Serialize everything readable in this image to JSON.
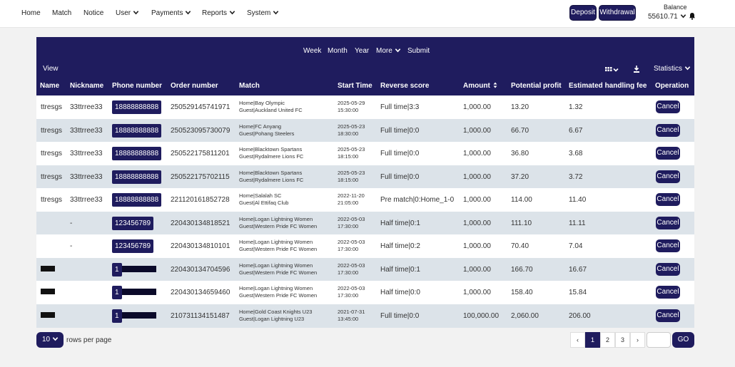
{
  "nav": {
    "items": [
      {
        "label": "Home",
        "dropdown": false
      },
      {
        "label": "Match",
        "dropdown": false
      },
      {
        "label": "Notice",
        "dropdown": false
      },
      {
        "label": "User",
        "dropdown": true
      },
      {
        "label": "Payments",
        "dropdown": true
      },
      {
        "label": "Reports",
        "dropdown": true
      },
      {
        "label": "System",
        "dropdown": true
      }
    ],
    "deposit_label": "Deposit",
    "withdrawal_label": "Withdrawal",
    "balance_label": "Balance",
    "balance_value": "55610.71"
  },
  "filters": {
    "week": "Week",
    "month": "Month",
    "year": "Year",
    "more": "More",
    "submit": "Submit"
  },
  "toolbar": {
    "view_label": "View",
    "statistics_label": "Statistics",
    "grid_icon": "grid-icon",
    "export_icon": "download-icon"
  },
  "table": {
    "columns": [
      "Name",
      "Nickname",
      "Phone number",
      "Order number",
      "Match",
      "Start Time",
      "Reverse score",
      "Amount",
      "Potential profit",
      "Estimated handling fee",
      "Operation"
    ],
    "cancel_label": "Cancel",
    "rows": [
      {
        "name": "ttresgs",
        "nickname": "33ttrree33",
        "phone": "18888888888",
        "order": "250529145741971",
        "home": "Home|Bay Olympic",
        "guest": "Guest|Auckland United FC",
        "date": "2025-05-29",
        "time": "15:30:00",
        "score": "Full time|3:3",
        "amount": "1,000.00",
        "profit": "13.20",
        "fee": "1.32"
      },
      {
        "name": "ttresgs",
        "nickname": "33ttrree33",
        "phone": "18888888888",
        "order": "250523095730079",
        "home": "Home|FC Anyang",
        "guest": "Guest|Pohang Steelers",
        "date": "2025-05-23",
        "time": "18:30:00",
        "score": "Full time|0:0",
        "amount": "1,000.00",
        "profit": "66.70",
        "fee": "6.67"
      },
      {
        "name": "ttresgs",
        "nickname": "33ttrree33",
        "phone": "18888888888",
        "order": "250522175811201",
        "home": "Home|Blacktown Spartans",
        "guest": "Guest|Rydalmere Lions FC",
        "date": "2025-05-23",
        "time": "18:15:00",
        "score": "Full time|0:0",
        "amount": "1,000.00",
        "profit": "36.80",
        "fee": "3.68"
      },
      {
        "name": "ttresgs",
        "nickname": "33ttrree33",
        "phone": "18888888888",
        "order": "250522175702115",
        "home": "Home|Blacktown Spartans",
        "guest": "Guest|Rydalmere Lions FC",
        "date": "2025-05-23",
        "time": "18:15:00",
        "score": "Full time|0:0",
        "amount": "1,000.00",
        "profit": "37.20",
        "fee": "3.72"
      },
      {
        "name": "ttresgs",
        "nickname": "33ttrree33",
        "phone": "18888888888",
        "order": "221120161852728",
        "home": "Home|Salalah SC",
        "guest": "Guest|Al Ettifaq Club",
        "date": "2022-11-20",
        "time": "21:05:00",
        "score": "Pre match|0:Home_1-0",
        "amount": "1,000.00",
        "profit": "114.00",
        "fee": "11.40"
      },
      {
        "name": "",
        "nickname": "-",
        "phone": "123456789",
        "order": "220430134818521",
        "home": "Home|Logan Lightning Women",
        "guest": "Guest|Western Pride FC Women",
        "date": "2022-05-03",
        "time": "17:30:00",
        "score": "Half time|0:1",
        "amount": "1,000.00",
        "profit": "111.10",
        "fee": "11.11"
      },
      {
        "name": "",
        "nickname": "-",
        "phone": "123456789",
        "order": "220430134810101",
        "home": "Home|Logan Lightning Women",
        "guest": "Guest|Western Pride FC Women",
        "date": "2022-05-03",
        "time": "17:30:00",
        "score": "Half time|0:2",
        "amount": "1,000.00",
        "profit": "70.40",
        "fee": "7.04"
      },
      {
        "name": "",
        "nickname": "",
        "phone": "1",
        "order": "220430134704596",
        "home": "Home|Logan Lightning Women",
        "guest": "Guest|Western Pride FC Women",
        "date": "2022-05-03",
        "time": "17:30:00",
        "score": "Half time|0:1",
        "amount": "1,000.00",
        "profit": "166.70",
        "fee": "16.67"
      },
      {
        "name": "",
        "nickname": "",
        "phone": "1",
        "order": "220430134659460",
        "home": "Home|Logan Lightning Women",
        "guest": "Guest|Western Pride FC Women",
        "date": "2022-05-03",
        "time": "17:30:00",
        "score": "Half time|0:0",
        "amount": "1,000.00",
        "profit": "158.40",
        "fee": "15.84"
      },
      {
        "name": "",
        "nickname": "",
        "phone": "1",
        "order": "210731134151487",
        "home": "Home|Gold Coast Knights U23",
        "guest": "Guest|Logan Lightning U23",
        "date": "2021-07-31",
        "time": "13:45:00",
        "score": "Full time|0:0",
        "amount": "100,000.00",
        "profit": "2,060.00",
        "fee": "206.00"
      }
    ]
  },
  "pagination": {
    "page_size": "10",
    "rows_label": "rows per page",
    "prev": "‹",
    "next": "›",
    "pages": [
      "1",
      "2",
      "3"
    ],
    "current": "1",
    "go_label": "GO"
  },
  "colors": {
    "primary": "#1f1c5e",
    "row_alt": "#dce3e9"
  }
}
